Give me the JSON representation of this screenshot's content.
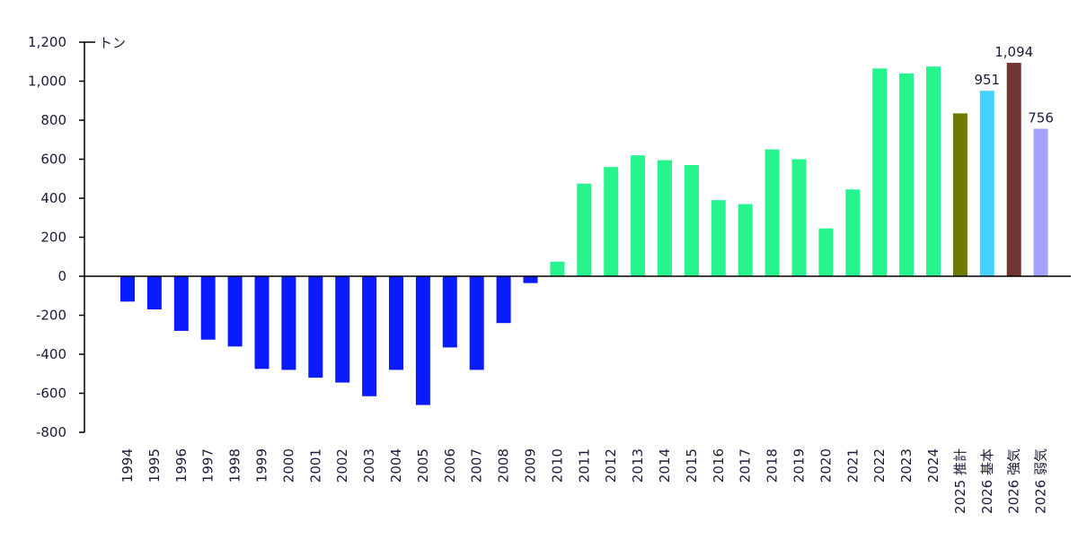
{
  "chart_data": {
    "type": "bar",
    "unit_label": "トン",
    "ylim": [
      -800,
      1200
    ],
    "y_ticks": [
      1200,
      1000,
      800,
      600,
      400,
      200,
      0,
      -200,
      -400,
      -600,
      -800
    ],
    "y_tick_labels": [
      "1,200",
      "1,000",
      "800",
      "600",
      "400",
      "200",
      "0",
      "-200",
      "-400",
      "-600",
      "-800"
    ],
    "grid": false,
    "legend": "none",
    "categories": [
      "1994",
      "1995",
      "1996",
      "1997",
      "1998",
      "1999",
      "2000",
      "2001",
      "2002",
      "2003",
      "2004",
      "2005",
      "2006",
      "2007",
      "2008",
      "2009",
      "2010",
      "2011",
      "2012",
      "2013",
      "2014",
      "2015",
      "2016",
      "2017",
      "2018",
      "2019",
      "2020",
      "2021",
      "2022",
      "2023",
      "2024",
      "2025 推計",
      "2026 基本",
      "2026 強気",
      "2026 弱気"
    ],
    "values": [
      -130,
      -170,
      -280,
      -325,
      -360,
      -475,
      -480,
      -520,
      -545,
      -615,
      -480,
      -660,
      -365,
      -480,
      -240,
      -35,
      75,
      475,
      560,
      620,
      595,
      570,
      390,
      370,
      650,
      600,
      245,
      445,
      1065,
      1040,
      1075,
      835,
      951,
      1094,
      756
    ],
    "bar_colors": [
      "#0a1cff",
      "#0a1cff",
      "#0a1cff",
      "#0a1cff",
      "#0a1cff",
      "#0a1cff",
      "#0a1cff",
      "#0a1cff",
      "#0a1cff",
      "#0a1cff",
      "#0a1cff",
      "#0a1cff",
      "#0a1cff",
      "#0a1cff",
      "#0a1cff",
      "#0a1cff",
      "#26f58d",
      "#26f58d",
      "#26f58d",
      "#26f58d",
      "#26f58d",
      "#26f58d",
      "#26f58d",
      "#26f58d",
      "#26f58d",
      "#26f58d",
      "#26f58d",
      "#26f58d",
      "#26f58d",
      "#26f58d",
      "#26f58d",
      "#6e7a00",
      "#48d3ff",
      "#733434",
      "#a6a0ff"
    ],
    "data_labels": [
      "",
      "",
      "",
      "",
      "",
      "",
      "",
      "",
      "",
      "",
      "",
      "",
      "",
      "",
      "",
      "",
      "",
      "",
      "",
      "",
      "",
      "",
      "",
      "",
      "",
      "",
      "",
      "",
      "",
      "",
      "",
      "",
      "951",
      "1,094",
      "756"
    ]
  }
}
